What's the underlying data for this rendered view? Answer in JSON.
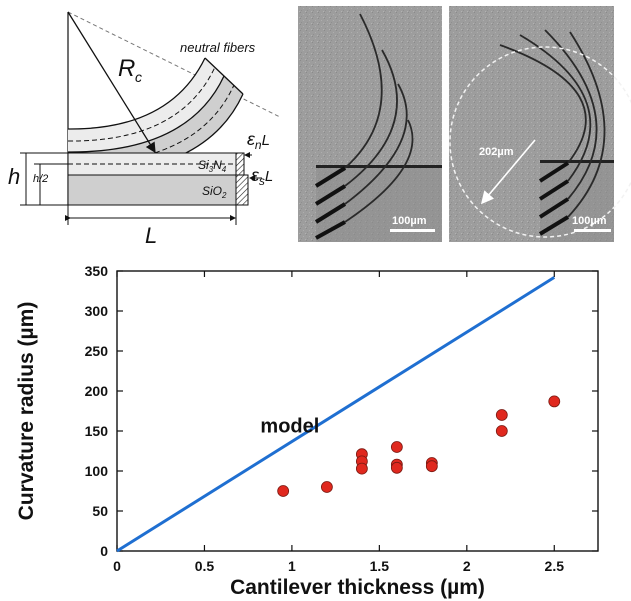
{
  "diagram": {
    "radius_label": "R",
    "radius_sub": "c",
    "neutral_fibers_label": "neutral fibers",
    "height_label": "h",
    "half_height_label": "h/2",
    "length_label": "L",
    "si3n4_label": "Si",
    "si3n4_sub1": "3",
    "si3n4_mid": "N",
    "si3n4_sub2": "4",
    "sio2_label": "SiO",
    "sio2_sub": "2",
    "strain_n_label": "ε",
    "strain_n_sub": "n",
    "strain_n_suffix": "L",
    "strain_s_label": "ε",
    "strain_s_sub": "s",
    "strain_s_suffix": "L"
  },
  "micrographs": [
    {
      "scale_label": "100µm"
    },
    {
      "scale_label": "100µm",
      "radius_label": "202µm"
    }
  ],
  "chart_data": {
    "type": "scatter",
    "xlabel": "Cantilever thickness (µm)",
    "ylabel": "Curvature radius (µm)",
    "xlim": [
      0,
      2.75
    ],
    "ylim": [
      0,
      350
    ],
    "xticks": [
      0,
      0.5,
      1,
      1.5,
      2,
      2.5
    ],
    "xtick_labels": [
      "0",
      "0.5",
      "1",
      "1.5",
      "2",
      "2.5"
    ],
    "yticks": [
      0,
      50,
      100,
      150,
      200,
      250,
      300,
      350
    ],
    "ytick_labels": [
      "0",
      "50",
      "100",
      "150",
      "200",
      "250",
      "300",
      "350"
    ],
    "grid": false,
    "series": [
      {
        "name": "model",
        "kind": "line",
        "color": "#1f6fd1",
        "x": [
          0,
          2.5
        ],
        "y": [
          0,
          342
        ]
      },
      {
        "kind": "scatter",
        "color": "#e0281e",
        "x": [
          0.95,
          1.2,
          1.4,
          1.4,
          1.4,
          1.6,
          1.6,
          1.6,
          1.8,
          1.8,
          2.2,
          2.2,
          2.5
        ],
        "y": [
          75,
          80,
          121,
          112,
          103,
          130,
          108,
          104,
          110,
          106,
          170,
          150,
          187
        ]
      }
    ],
    "annotations": [
      {
        "text": "model",
        "x": 0.82,
        "y": 148
      }
    ]
  }
}
